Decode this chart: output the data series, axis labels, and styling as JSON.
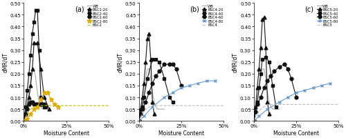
{
  "panels": [
    {
      "label": "(a)",
      "series": [
        {
          "name": "WB",
          "color": "#aaaaaa",
          "marker": "none",
          "linestyle": "-",
          "lw": 0.8,
          "x": [
            0,
            1,
            2,
            3,
            4,
            5,
            6,
            7,
            8,
            9,
            10,
            11,
            12,
            13,
            14,
            15
          ],
          "y": [
            0,
            0.04,
            0.08,
            0.13,
            0.18,
            0.22,
            0.22,
            0.18,
            0.12,
            0.08,
            0.06,
            0.05,
            0.05,
            0.05,
            0.05,
            0.05
          ]
        },
        {
          "name": "BSC2-20",
          "color": "#111111",
          "marker": "^",
          "linestyle": "-",
          "lw": 0.8,
          "x": [
            0,
            1,
            2,
            3,
            4,
            5,
            6,
            8,
            10,
            12,
            15
          ],
          "y": [
            0,
            0.03,
            0.06,
            0.1,
            0.15,
            0.22,
            0.33,
            0.33,
            0.22,
            0.1,
            0.05
          ]
        },
        {
          "name": "BSC2-40",
          "color": "#111111",
          "marker": "s",
          "linestyle": "-",
          "lw": 0.8,
          "x": [
            0,
            1,
            2,
            3,
            4,
            5,
            6,
            7,
            8,
            9,
            10,
            11,
            12,
            13
          ],
          "y": [
            0,
            0.06,
            0.13,
            0.2,
            0.28,
            0.37,
            0.42,
            0.47,
            0.47,
            0.3,
            0.1,
            0.07,
            0.06,
            0.06
          ]
        },
        {
          "name": "BSC2-60",
          "color": "#111111",
          "marker": "o",
          "linestyle": "-",
          "lw": 0.8,
          "x": [
            0,
            1,
            2,
            3,
            4,
            5,
            6,
            7,
            8,
            9,
            10,
            11,
            12
          ],
          "y": [
            0,
            0.03,
            0.05,
            0.07,
            0.08,
            0.08,
            0.07,
            0.07,
            0.07,
            0.07,
            0.07,
            0.07,
            0.07
          ]
        },
        {
          "name": "BSC2-80",
          "color": "#ddaa00",
          "marker": "*",
          "linestyle": "-",
          "lw": 0.8,
          "x": [
            0,
            2,
            4,
            6,
            8,
            10,
            12,
            14,
            16,
            18,
            20
          ],
          "y": [
            0,
            0.01,
            0.03,
            0.05,
            0.06,
            0.09,
            0.12,
            0.12,
            0.09,
            0.07,
            0.06
          ]
        },
        {
          "name": "BSC2",
          "color": "#bbbb00",
          "marker": "none",
          "linestyle": "--",
          "lw": 0.8,
          "x": [
            0,
            2,
            4,
            6,
            8,
            10,
            12,
            14,
            16,
            18,
            20,
            25,
            30,
            35,
            40,
            45,
            50
          ],
          "y": [
            0,
            0.03,
            0.05,
            0.06,
            0.065,
            0.065,
            0.065,
            0.065,
            0.065,
            0.065,
            0.065,
            0.065,
            0.065,
            0.065,
            0.065,
            0.065,
            0.065
          ]
        }
      ],
      "xlim": [
        0,
        50
      ],
      "ylim": [
        0,
        0.5
      ],
      "yticks": [
        0.0,
        0.05,
        0.1,
        0.15,
        0.2,
        0.25,
        0.3,
        0.35,
        0.4,
        0.45,
        0.5
      ]
    },
    {
      "label": "(b)",
      "series": [
        {
          "name": "WB",
          "color": "#aaaaaa",
          "marker": "none",
          "linestyle": "-",
          "lw": 0.8,
          "x": [
            0,
            1,
            2,
            3,
            4,
            5,
            6,
            7,
            8,
            9,
            10,
            11,
            12,
            13,
            14,
            15
          ],
          "y": [
            0,
            0.04,
            0.08,
            0.13,
            0.18,
            0.22,
            0.22,
            0.18,
            0.12,
            0.08,
            0.06,
            0.05,
            0.05,
            0.05,
            0.05,
            0.05
          ]
        },
        {
          "name": "BSC4-20",
          "color": "#111111",
          "marker": "^",
          "linestyle": "-",
          "lw": 0.8,
          "x": [
            0,
            1,
            2,
            3,
            4,
            5,
            6,
            7,
            8,
            9
          ],
          "y": [
            0,
            0.05,
            0.1,
            0.16,
            0.25,
            0.35,
            0.37,
            0.26,
            0.08,
            0.03
          ]
        },
        {
          "name": "BSC4-40",
          "color": "#111111",
          "marker": "s",
          "linestyle": "-",
          "lw": 0.8,
          "x": [
            0,
            1,
            2,
            3,
            5,
            8,
            10,
            12,
            15,
            18,
            20
          ],
          "y": [
            0,
            0.03,
            0.06,
            0.1,
            0.18,
            0.26,
            0.26,
            0.25,
            0.18,
            0.1,
            0.08
          ]
        },
        {
          "name": "BSC4-60",
          "color": "#111111",
          "marker": "o",
          "linestyle": "-",
          "lw": 0.8,
          "x": [
            0,
            1,
            2,
            4,
            6,
            8,
            10,
            12,
            15,
            18,
            20,
            22,
            25
          ],
          "y": [
            0,
            0.03,
            0.05,
            0.08,
            0.12,
            0.16,
            0.19,
            0.21,
            0.24,
            0.24,
            0.24,
            0.22,
            0.15
          ]
        },
        {
          "name": "BSC4-80",
          "color": "#6699cc",
          "marker": "x",
          "linestyle": "-",
          "lw": 0.8,
          "x": [
            0,
            3,
            8,
            15,
            20,
            25,
            30,
            35,
            40,
            45
          ],
          "y": [
            0,
            0.02,
            0.06,
            0.1,
            0.12,
            0.14,
            0.15,
            0.16,
            0.17,
            0.17
          ]
        },
        {
          "name": "BSC4",
          "color": "#bbbbbb",
          "marker": "none",
          "linestyle": "--",
          "lw": 0.8,
          "x": [
            0,
            2,
            4,
            6,
            8,
            10,
            12,
            14,
            16,
            18,
            20,
            25,
            30,
            35,
            40,
            45,
            50
          ],
          "y": [
            0,
            0.03,
            0.05,
            0.06,
            0.065,
            0.065,
            0.065,
            0.065,
            0.065,
            0.065,
            0.065,
            0.065,
            0.065,
            0.065,
            0.065,
            0.065,
            0.065
          ]
        }
      ],
      "xlim": [
        0,
        50
      ],
      "ylim": [
        0,
        0.5
      ],
      "yticks": [
        0.0,
        0.05,
        0.1,
        0.15,
        0.2,
        0.25,
        0.3,
        0.35,
        0.4,
        0.45,
        0.5
      ]
    },
    {
      "label": "(c)",
      "series": [
        {
          "name": "WB",
          "color": "#aaaaaa",
          "marker": "none",
          "linestyle": "-",
          "lw": 0.8,
          "x": [
            0,
            1,
            2,
            3,
            4,
            5,
            6,
            7,
            8,
            9,
            10,
            11,
            12,
            13,
            14,
            15
          ],
          "y": [
            0,
            0.04,
            0.08,
            0.13,
            0.18,
            0.22,
            0.22,
            0.18,
            0.12,
            0.08,
            0.06,
            0.05,
            0.05,
            0.05,
            0.05,
            0.05
          ]
        },
        {
          "name": "BSC5-20",
          "color": "#111111",
          "marker": "^",
          "linestyle": "-",
          "lw": 0.8,
          "x": [
            0,
            1,
            2,
            3,
            4,
            5,
            6,
            7,
            8,
            9
          ],
          "y": [
            0,
            0.06,
            0.14,
            0.22,
            0.31,
            0.43,
            0.44,
            0.31,
            0.08,
            0.03
          ]
        },
        {
          "name": "BSC5-40",
          "color": "#111111",
          "marker": "s",
          "linestyle": "-",
          "lw": 0.8,
          "x": [
            0,
            1,
            2,
            3,
            4,
            5,
            7,
            9,
            11,
            13
          ],
          "y": [
            0,
            0.04,
            0.08,
            0.14,
            0.2,
            0.26,
            0.27,
            0.25,
            0.15,
            0.06
          ]
        },
        {
          "name": "BSC5-60",
          "color": "#111111",
          "marker": "o",
          "linestyle": "-",
          "lw": 0.8,
          "x": [
            0,
            1,
            2,
            4,
            6,
            8,
            10,
            12,
            15,
            18,
            20,
            22,
            25
          ],
          "y": [
            0,
            0.04,
            0.07,
            0.1,
            0.14,
            0.17,
            0.19,
            0.21,
            0.23,
            0.24,
            0.22,
            0.18,
            0.1
          ]
        },
        {
          "name": "BSC5-80",
          "color": "#6699cc",
          "marker": "x",
          "linestyle": "-",
          "lw": 0.8,
          "x": [
            0,
            3,
            8,
            15,
            20,
            25,
            30,
            35,
            40,
            45
          ],
          "y": [
            0,
            0.02,
            0.05,
            0.08,
            0.1,
            0.12,
            0.13,
            0.14,
            0.15,
            0.16
          ]
        },
        {
          "name": "BSC5",
          "color": "#bbbbbb",
          "marker": "none",
          "linestyle": "--",
          "lw": 0.8,
          "x": [
            0,
            2,
            4,
            6,
            8,
            10,
            12,
            14,
            16,
            18,
            20,
            25,
            30,
            35,
            40,
            45,
            50
          ],
          "y": [
            0,
            0.03,
            0.05,
            0.06,
            0.07,
            0.07,
            0.07,
            0.07,
            0.07,
            0.07,
            0.07,
            0.07,
            0.07,
            0.07,
            0.07,
            0.07,
            0.07
          ]
        }
      ],
      "xlim": [
        0,
        50
      ],
      "ylim": [
        0,
        0.5
      ],
      "yticks": [
        0.0,
        0.05,
        0.1,
        0.15,
        0.2,
        0.25,
        0.3,
        0.35,
        0.4,
        0.45,
        0.5
      ]
    }
  ],
  "xlabel": "Moisture Content",
  "ylabel": "dMR/dT",
  "xtick_labels": [
    "0%",
    "25%",
    "50%"
  ],
  "xtick_values": [
    0,
    25,
    50
  ]
}
